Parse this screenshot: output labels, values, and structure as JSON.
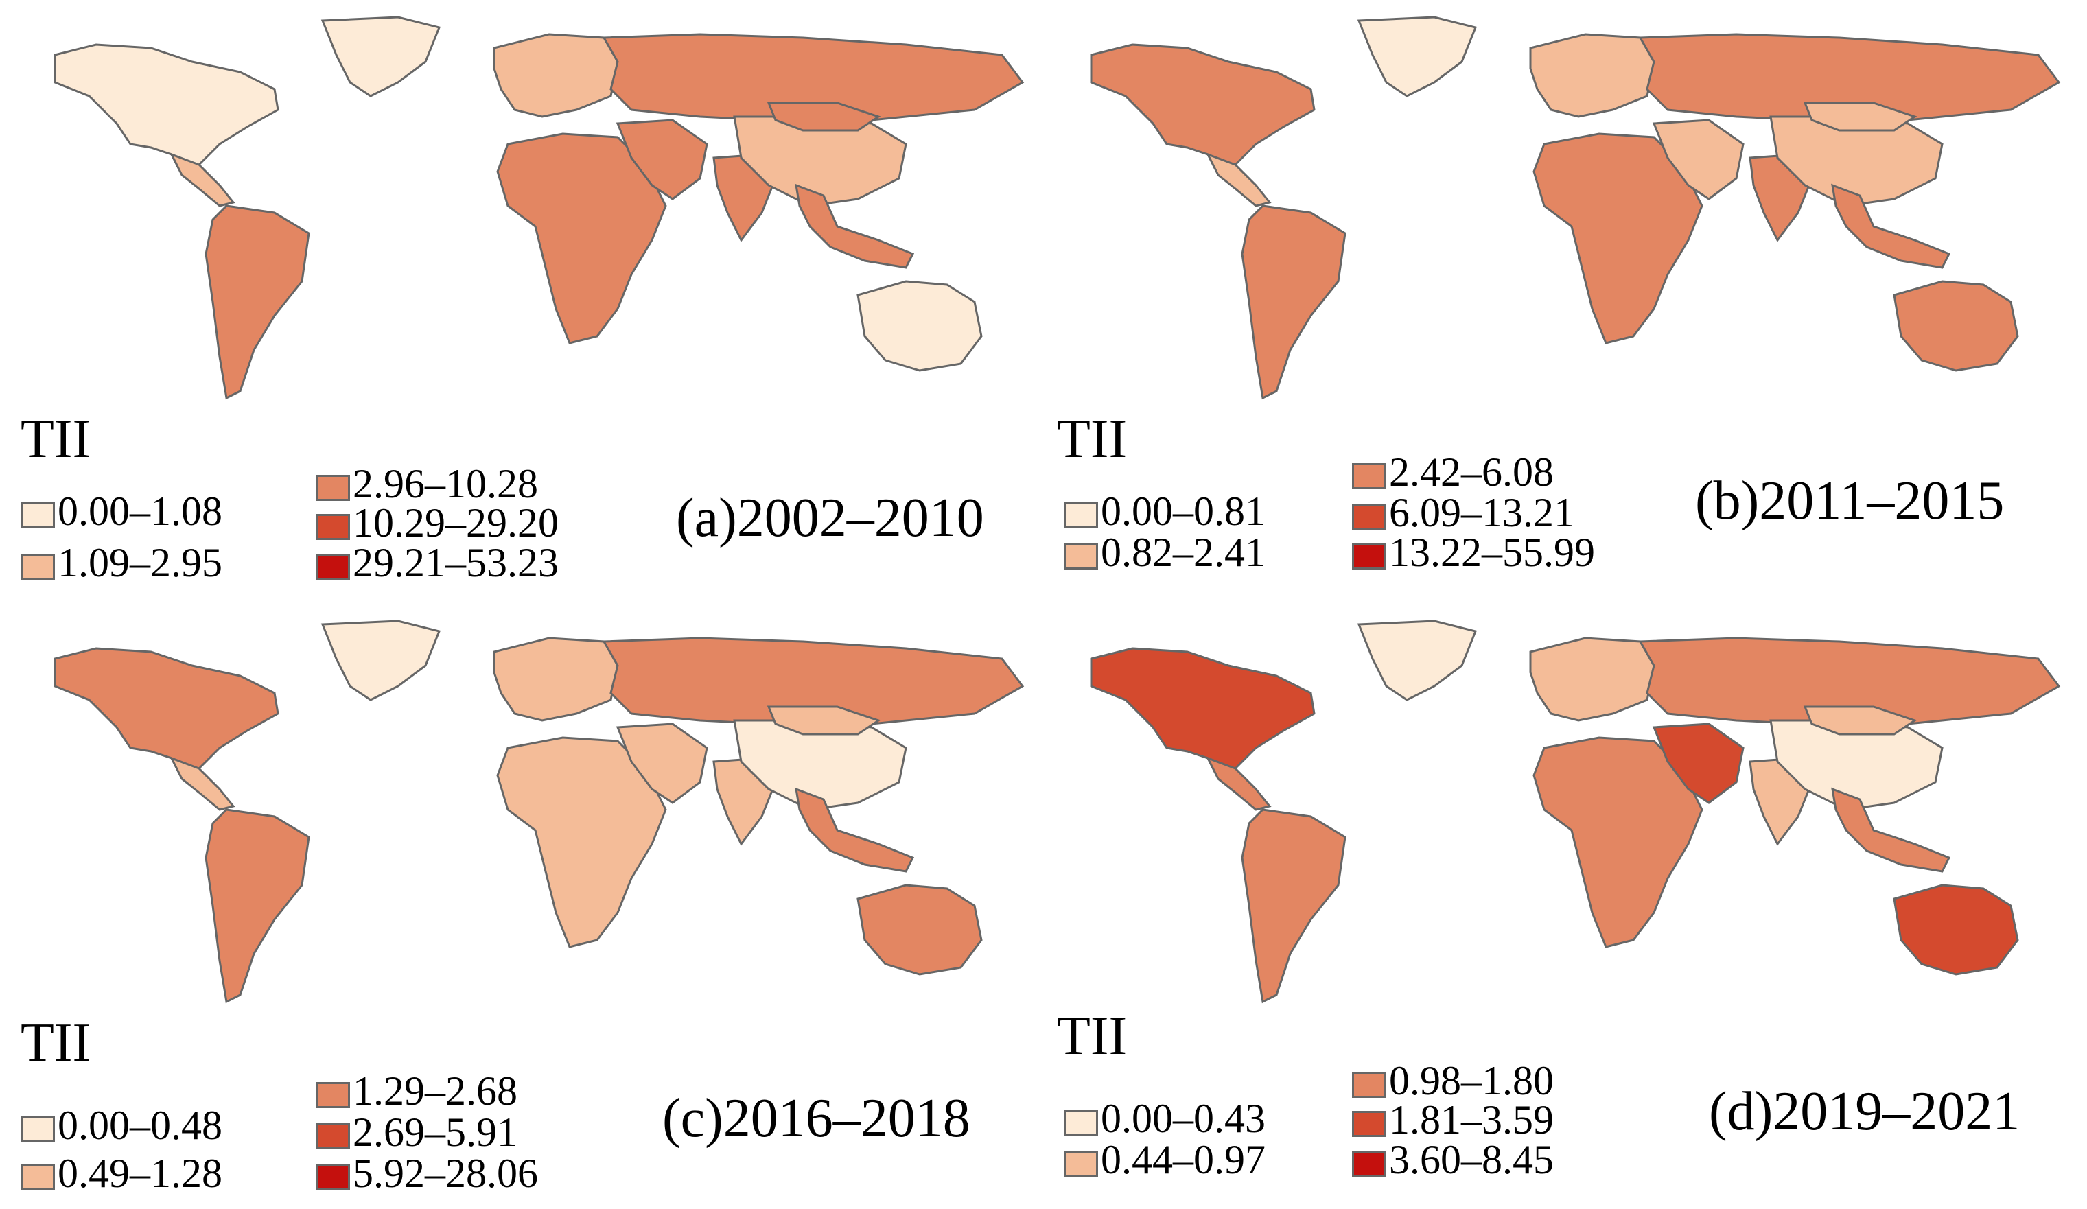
{
  "colors": {
    "c1": "#fdebd7",
    "c2": "#f4bc98",
    "c3": "#e38662",
    "c4": "#d44a2e",
    "c5": "#c4100d",
    "border": "#666666",
    "ocean": "#ffffff"
  },
  "panels": [
    {
      "caption": "(a)2002–2010",
      "legend_title": "TII",
      "classes": [
        "0.00–1.08",
        "1.09–2.95",
        "2.96–10.28",
        "10.29–29.20",
        "29.21–53.23"
      ],
      "regions": {
        "north_america": 1,
        "greenland": 1,
        "central_america": 2,
        "south_america": 3,
        "europe": 2,
        "russia": 3,
        "africa": 3,
        "middle_east": 3,
        "india": 3,
        "china": 2,
        "mongolia": 3,
        "southeast_asia": 3,
        "australia": 1
      }
    },
    {
      "caption": "(b)2011–2015",
      "legend_title": "TII",
      "classes": [
        "0.00–0.81",
        "0.82–2.41",
        "2.42–6.08",
        "6.09–13.21",
        "13.22–55.99"
      ],
      "regions": {
        "north_america": 3,
        "greenland": 1,
        "central_america": 2,
        "south_america": 3,
        "europe": 2,
        "russia": 3,
        "africa": 3,
        "middle_east": 2,
        "india": 3,
        "china": 2,
        "mongolia": 2,
        "southeast_asia": 3,
        "australia": 3
      }
    },
    {
      "caption": "(c)2016–2018",
      "legend_title": "TII",
      "classes": [
        "0.00–0.48",
        "0.49–1.28",
        "1.29–2.68",
        "2.69–5.91",
        "5.92–28.06"
      ],
      "regions": {
        "north_america": 3,
        "greenland": 1,
        "central_america": 2,
        "south_america": 3,
        "europe": 2,
        "russia": 3,
        "africa": 2,
        "middle_east": 2,
        "india": 2,
        "china": 1,
        "mongolia": 2,
        "southeast_asia": 3,
        "australia": 3
      }
    },
    {
      "caption": "(d)2019–2021",
      "legend_title": "TII",
      "classes": [
        "0.00–0.43",
        "0.44–0.97",
        "0.98–1.80",
        "1.81–3.59",
        "3.60–8.45"
      ],
      "regions": {
        "north_america": 4,
        "greenland": 1,
        "central_america": 3,
        "south_america": 3,
        "europe": 2,
        "russia": 3,
        "africa": 3,
        "middle_east": 4,
        "india": 2,
        "china": 1,
        "mongolia": 2,
        "southeast_asia": 3,
        "australia": 4
      }
    }
  ]
}
